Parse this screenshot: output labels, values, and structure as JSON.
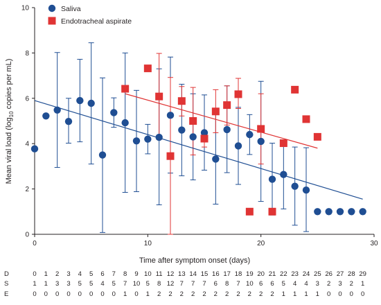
{
  "chart_data": {
    "type": "scatter",
    "xlabel": "Time after symptom onset (days)",
    "ylabel_parts": [
      "Mean viral load (log",
      "10",
      " copies per mL)"
    ],
    "xlim": [
      0,
      30
    ],
    "ylim": [
      0,
      10
    ],
    "xticks": [
      0,
      10,
      20,
      30
    ],
    "yticks": [
      0,
      2,
      4,
      6,
      8,
      10
    ],
    "grid": false,
    "legend_position": "top-left",
    "colors": {
      "saliva": "#1f4e93",
      "endotracheal": "#e03434",
      "axis": "#231f20"
    },
    "series": [
      {
        "name": "Saliva",
        "marker": "circle",
        "points": [
          {
            "x": 0,
            "y": 3.77
          },
          {
            "x": 1,
            "y": 5.22
          },
          {
            "x": 2,
            "y": 5.48,
            "lo": 2.95,
            "hi": 8.02
          },
          {
            "x": 3,
            "y": 4.98,
            "lo": 4.02,
            "hi": 6.0
          },
          {
            "x": 4,
            "y": 5.9,
            "lo": 4.08,
            "hi": 7.72
          },
          {
            "x": 5,
            "y": 5.78,
            "lo": 3.1,
            "hi": 8.45
          },
          {
            "x": 6,
            "y": 3.5,
            "lo": 0.08,
            "hi": 6.9
          },
          {
            "x": 7,
            "y": 5.37,
            "lo": 4.72,
            "hi": 6.02
          },
          {
            "x": 8,
            "y": 4.92,
            "lo": 1.85,
            "hi": 8.0
          },
          {
            "x": 9,
            "y": 4.12,
            "lo": 1.88,
            "hi": 6.35
          },
          {
            "x": 10,
            "y": 4.2,
            "lo": 3.55,
            "hi": 4.85
          },
          {
            "x": 11,
            "y": 4.28,
            "lo": 1.3,
            "hi": 7.3
          },
          {
            "x": 12,
            "y": 5.25,
            "lo": 2.7,
            "hi": 7.82
          },
          {
            "x": 13,
            "y": 4.6,
            "lo": 2.58,
            "hi": 6.62
          },
          {
            "x": 14,
            "y": 4.3,
            "lo": 2.4,
            "hi": 6.2
          },
          {
            "x": 15,
            "y": 4.48,
            "lo": 2.83,
            "hi": 6.15
          },
          {
            "x": 16,
            "y": 3.32,
            "lo": 1.33,
            "hi": 5.32
          },
          {
            "x": 17,
            "y": 4.62,
            "lo": 2.72,
            "hi": 6.55
          },
          {
            "x": 18,
            "y": 3.9,
            "lo": 2.2,
            "hi": 5.6
          },
          {
            "x": 19,
            "y": 4.4,
            "lo": 3.52,
            "hi": 5.28
          },
          {
            "x": 20,
            "y": 4.1,
            "lo": 1.45,
            "hi": 6.75
          },
          {
            "x": 21,
            "y": 2.43,
            "lo": 0.85,
            "hi": 4.02
          },
          {
            "x": 22,
            "y": 2.64,
            "lo": 1.12,
            "hi": 4.15
          },
          {
            "x": 23,
            "y": 2.12,
            "lo": 0.4,
            "hi": 3.85
          },
          {
            "x": 24,
            "y": 1.95,
            "lo": 0.12,
            "hi": 3.82
          },
          {
            "x": 25,
            "y": 1.0
          },
          {
            "x": 26,
            "y": 1.0
          },
          {
            "x": 27,
            "y": 1.0
          },
          {
            "x": 28,
            "y": 1.0
          },
          {
            "x": 29,
            "y": 1.0
          }
        ],
        "trend": {
          "x": [
            0,
            29
          ],
          "y": [
            5.9,
            1.55
          ]
        }
      },
      {
        "name": "Endotracheal aspirate",
        "marker": "square",
        "points": [
          {
            "x": 8,
            "y": 6.42
          },
          {
            "x": 10,
            "y": 7.32
          },
          {
            "x": 11,
            "y": 6.08,
            "lo": 4.18,
            "hi": 7.98
          },
          {
            "x": 12,
            "y": 3.45,
            "lo": 0.0,
            "hi": 6.92
          },
          {
            "x": 13,
            "y": 5.88,
            "lo": 5.22,
            "hi": 6.52
          },
          {
            "x": 14,
            "y": 5.0,
            "lo": 3.5,
            "hi": 6.48
          },
          {
            "x": 15,
            "y": 4.22,
            "lo": 3.85,
            "hi": 4.58
          },
          {
            "x": 16,
            "y": 5.42,
            "lo": 4.48,
            "hi": 6.38
          },
          {
            "x": 17,
            "y": 5.7,
            "lo": 4.82,
            "hi": 6.55
          },
          {
            "x": 18,
            "y": 6.18,
            "lo": 5.55,
            "hi": 6.88
          },
          {
            "x": 19,
            "y": 1.0
          },
          {
            "x": 20,
            "y": 4.65,
            "lo": 3.1,
            "hi": 6.2
          },
          {
            "x": 21,
            "y": 1.0,
            "lo": 0.9,
            "hi": 1.1
          },
          {
            "x": 22,
            "y": 4.02
          },
          {
            "x": 23,
            "y": 6.38
          },
          {
            "x": 24,
            "y": 5.08
          },
          {
            "x": 25,
            "y": 4.3
          }
        ],
        "trend": {
          "x": [
            8,
            25
          ],
          "y": [
            6.2,
            3.8
          ]
        }
      }
    ],
    "table": {
      "rows": [
        "D",
        "S",
        "E"
      ],
      "columns": [
        [
          "0",
          "1",
          "0"
        ],
        [
          "1",
          "1",
          "0"
        ],
        [
          "2",
          "3",
          "0"
        ],
        [
          "3",
          "3",
          "0"
        ],
        [
          "4",
          "5",
          "0"
        ],
        [
          "5",
          "5",
          "0"
        ],
        [
          "6",
          "4",
          "0"
        ],
        [
          "7",
          "5",
          "0"
        ],
        [
          "8",
          "7",
          "1"
        ],
        [
          "9",
          "10",
          "0"
        ],
        [
          "10",
          "5",
          "1"
        ],
        [
          "11",
          "8",
          "2"
        ],
        [
          "12",
          "12",
          "2"
        ],
        [
          "13",
          "7",
          "2"
        ],
        [
          "14",
          "7",
          "2"
        ],
        [
          "15",
          "7",
          "2"
        ],
        [
          "16",
          "6",
          "2"
        ],
        [
          "17",
          "8",
          "2"
        ],
        [
          "18",
          "7",
          "2"
        ],
        [
          "19",
          "10",
          "2"
        ],
        [
          "20",
          "6",
          "2"
        ],
        [
          "21",
          "6",
          "2"
        ],
        [
          "22",
          "5",
          "1"
        ],
        [
          "23",
          "4",
          "1"
        ],
        [
          "24",
          "4",
          "1"
        ],
        [
          "25",
          "3",
          "1"
        ],
        [
          "26",
          "2",
          "0"
        ],
        [
          "27",
          "3",
          "0"
        ],
        [
          "28",
          "2",
          "0"
        ],
        [
          "29",
          "1",
          "0"
        ]
      ]
    }
  }
}
